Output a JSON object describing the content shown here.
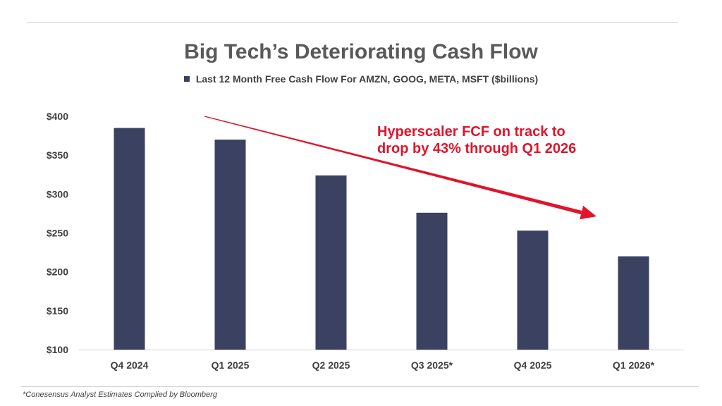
{
  "chart_data": {
    "type": "bar",
    "title": "Big Tech’s Deteriorating Cash Flow",
    "legend": "Last 12 Month Free Cash Flow For AMZN, GOOG, META, MSFT ($billions)",
    "categories": [
      "Q4 2024",
      "Q1 2025",
      "Q2 2025",
      "Q3 2025*",
      "Q4 2025",
      "Q1 2026*"
    ],
    "series": [
      {
        "name": "Last 12 Month Free Cash Flow For AMZN, GOOG, META, MSFT ($billions)",
        "values": [
          385,
          370,
          324,
          276,
          253,
          220
        ]
      }
    ],
    "ylim": [
      100,
      400
    ],
    "yticks": [
      100,
      150,
      200,
      250,
      300,
      350,
      400
    ],
    "ytick_labels": [
      "$100",
      "$150",
      "$200",
      "$250",
      "$300",
      "$350",
      "$400"
    ],
    "xlabel": "",
    "ylabel": "",
    "annotation": {
      "lines": [
        "Hyperscaler FCF on track to",
        "drop by 43% through Q1 2026"
      ]
    },
    "colors": {
      "bar": "#3b4161",
      "annotation": "#e0142c",
      "axis_text": "#404040"
    }
  },
  "footnote": "*Conesensus Analyst Estimates Complied by Bloomberg"
}
